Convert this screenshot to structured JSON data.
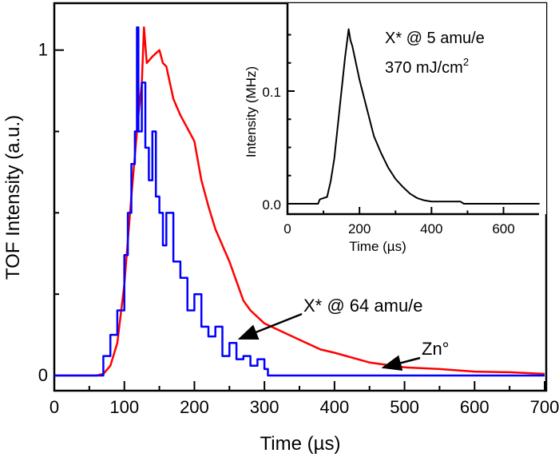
{
  "chart_data": [
    {
      "type": "line",
      "xlabel": "Time (µs)",
      "ylabel": "TOF Intensity (a.u.)",
      "xlim": [
        0,
        700
      ],
      "ylim": [
        -0.05,
        1.12
      ],
      "xticks": [
        "0",
        "100",
        "200",
        "300",
        "400",
        "500",
        "600",
        "700"
      ],
      "yticks": [
        "0",
        "1"
      ],
      "grid": false,
      "series": [
        {
          "color": "#ff0000",
          "x": [
            0,
            60,
            70,
            80,
            90,
            100,
            110,
            120,
            125,
            128,
            132,
            140,
            150,
            155,
            160,
            170,
            180,
            190,
            200,
            210,
            220,
            230,
            240,
            250,
            260,
            270,
            280,
            300,
            320,
            350,
            380,
            400,
            450,
            500,
            550,
            600,
            650,
            700
          ],
          "y": [
            0,
            0,
            0.005,
            0.03,
            0.1,
            0.28,
            0.55,
            0.8,
            0.9,
            1.07,
            0.96,
            0.98,
            1.0,
            0.96,
            0.95,
            0.85,
            0.8,
            0.76,
            0.72,
            0.6,
            0.52,
            0.45,
            0.4,
            0.35,
            0.29,
            0.23,
            0.2,
            0.16,
            0.14,
            0.11,
            0.08,
            0.07,
            0.04,
            0.025,
            0.02,
            0.012,
            0.01,
            0.005
          ]
        },
        {
          "color": "#0000ff",
          "x": [
            0,
            65,
            70,
            80,
            90,
            100,
            105,
            110,
            115,
            118,
            120,
            125,
            130,
            135,
            140,
            145,
            150,
            155,
            160,
            170,
            180,
            190,
            200,
            210,
            220,
            230,
            240,
            250,
            260,
            270,
            280,
            290,
            300,
            305,
            700
          ],
          "y": [
            0,
            0,
            0.06,
            0.125,
            0.2,
            0.37,
            0.5,
            0.65,
            0.75,
            1.07,
            0.75,
            0.9,
            0.7,
            0.6,
            0.75,
            0.55,
            0.5,
            0.4,
            0.5,
            0.35,
            0.3,
            0.2,
            0.25,
            0.15,
            0.12,
            0.15,
            0.06,
            0.1,
            0.05,
            0.06,
            0.03,
            0.05,
            0.02,
            0,
            0
          ]
        }
      ],
      "annotations": [
        {
          "text": "X* @ 64 amu/e",
          "points_to": [
            262,
            0.11
          ]
        },
        {
          "text": "Zn°",
          "points_to": [
            470,
            0.025
          ]
        }
      ]
    },
    {
      "type": "line",
      "xlabel": "Time (µs)",
      "ylabel": "Intensity (MHz)",
      "xlim": [
        0,
        700
      ],
      "ylim": [
        -0.01,
        0.18
      ],
      "xticks": [
        "0",
        "200",
        "400",
        "600"
      ],
      "yticks": [
        "0.0",
        "0.1"
      ],
      "grid": false,
      "title_lines": [
        "X* @ 5 amu/e",
        "370 mJ/cm",
        "2"
      ],
      "series": [
        {
          "color": "#000000",
          "x": [
            0,
            85,
            90,
            110,
            120,
            130,
            140,
            150,
            160,
            170,
            175,
            180,
            190,
            200,
            220,
            240,
            260,
            280,
            300,
            320,
            340,
            360,
            380,
            400,
            450,
            480,
            490,
            700
          ],
          "y": [
            0,
            0,
            0.004,
            0.006,
            0.02,
            0.04,
            0.07,
            0.1,
            0.13,
            0.155,
            0.145,
            0.14,
            0.125,
            0.11,
            0.085,
            0.06,
            0.045,
            0.032,
            0.022,
            0.015,
            0.009,
            0.005,
            0.003,
            0.002,
            0.002,
            0.002,
            0,
            0
          ]
        }
      ]
    }
  ]
}
